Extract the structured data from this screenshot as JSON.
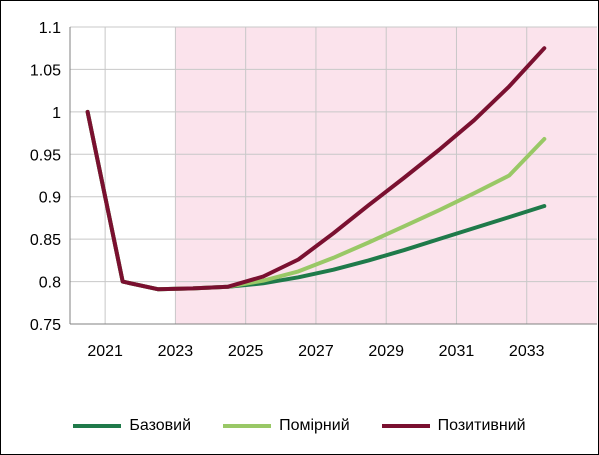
{
  "chart_data": {
    "type": "line",
    "title": "",
    "xlabel": "",
    "ylabel": "",
    "xlim": [
      2020,
      2035
    ],
    "ylim": [
      0.75,
      1.1
    ],
    "x_ticks": [
      2021,
      2023,
      2025,
      2027,
      2029,
      2031,
      2033
    ],
    "x_tick_labels": [
      "2021",
      "2023",
      "2025",
      "2027",
      "2029",
      "2031",
      "2033"
    ],
    "y_ticks": [
      0.75,
      0.8,
      0.85,
      0.9,
      0.95,
      1.0,
      1.05,
      1.1
    ],
    "y_tick_labels": [
      "0.75",
      "0.8",
      "0.85",
      "0.9",
      "0.95",
      "1",
      "1.05",
      "1.1"
    ],
    "grid": true,
    "shaded_region": {
      "x_from": 2023,
      "x_to": 2035,
      "color": "#fbe3ec"
    },
    "legend_position": "bottom",
    "series": [
      {
        "name": "Базовий",
        "color": "#1f7a4a",
        "x": [
          2020.5,
          2021.5,
          2022.5,
          2023.5,
          2024.5,
          2025.5,
          2026.5,
          2027.5,
          2028.5,
          2029.5,
          2030.5,
          2031.5,
          2032.5,
          2033.5
        ],
        "y": [
          1.0,
          0.8,
          0.791,
          0.792,
          0.794,
          0.798,
          0.805,
          0.814,
          0.825,
          0.837,
          0.85,
          0.863,
          0.876,
          0.889
        ]
      },
      {
        "name": "Помірний",
        "color": "#99c866",
        "x": [
          2020.5,
          2021.5,
          2022.5,
          2023.5,
          2024.5,
          2025.5,
          2026.5,
          2027.5,
          2028.5,
          2029.5,
          2030.5,
          2031.5,
          2032.5,
          2033.5
        ],
        "y": [
          1.0,
          0.8,
          0.791,
          0.792,
          0.794,
          0.801,
          0.812,
          0.828,
          0.846,
          0.865,
          0.884,
          0.904,
          0.925,
          0.968
        ]
      },
      {
        "name": "Позитивний",
        "color": "#7a1030",
        "x": [
          2020.5,
          2021.5,
          2022.5,
          2023.5,
          2024.5,
          2025.5,
          2026.5,
          2027.5,
          2028.5,
          2029.5,
          2030.5,
          2031.5,
          2032.5,
          2033.5
        ],
        "y": [
          1.0,
          0.8,
          0.791,
          0.792,
          0.794,
          0.806,
          0.826,
          0.857,
          0.89,
          0.922,
          0.955,
          0.99,
          1.03,
          1.075
        ]
      }
    ]
  }
}
